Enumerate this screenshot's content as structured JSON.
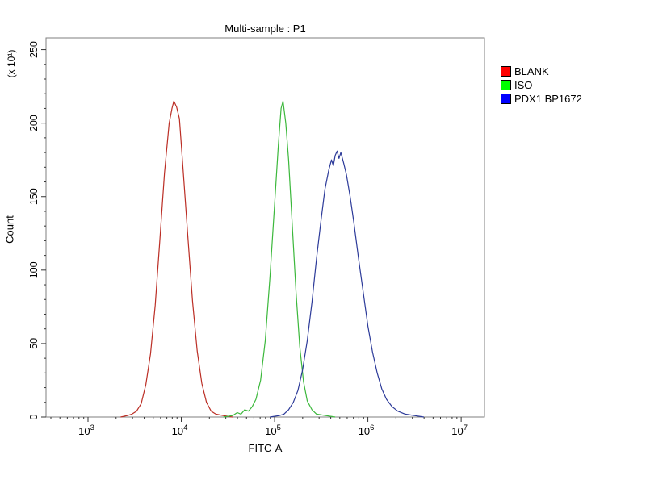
{
  "chart_data": {
    "type": "line",
    "title": "Multi-sample : P1",
    "xlabel": "FITC-A",
    "ylabel": "Count",
    "y_multiplier_label": "(x 10¹)",
    "x_scale": "log10",
    "x_range_log10": [
      2.55,
      7.25
    ],
    "x_major_tick_exponents": [
      3,
      4,
      5,
      6,
      7
    ],
    "y_range": [
      0,
      258
    ],
    "y_major_ticks": [
      0,
      50,
      100,
      150,
      200,
      250
    ],
    "y_minor_tick_step": 10,
    "grid": false,
    "legend_position": "right",
    "series": [
      {
        "name": "BLANK",
        "color": "#bb2e25",
        "legend_color": "#ff0000",
        "peak_x": 8500,
        "peak_log10": 3.92,
        "peak_count": 215,
        "points": [
          [
            3.35,
            0
          ],
          [
            3.42,
            1
          ],
          [
            3.47,
            2
          ],
          [
            3.52,
            4
          ],
          [
            3.57,
            9
          ],
          [
            3.62,
            22
          ],
          [
            3.67,
            43
          ],
          [
            3.72,
            76
          ],
          [
            3.77,
            120
          ],
          [
            3.82,
            166
          ],
          [
            3.87,
            200
          ],
          [
            3.9,
            210
          ],
          [
            3.92,
            215
          ],
          [
            3.95,
            211
          ],
          [
            3.98,
            203
          ],
          [
            4.02,
            168
          ],
          [
            4.07,
            123
          ],
          [
            4.12,
            79
          ],
          [
            4.17,
            45
          ],
          [
            4.22,
            23
          ],
          [
            4.27,
            10
          ],
          [
            4.32,
            4
          ],
          [
            4.37,
            2
          ],
          [
            4.45,
            1
          ],
          [
            4.55,
            0
          ]
        ]
      },
      {
        "name": "ISO",
        "color": "#3cb83c",
        "legend_color": "#00ff00",
        "peak_x": 120000,
        "peak_log10": 5.09,
        "peak_count": 215,
        "points": [
          [
            4.45,
            0
          ],
          [
            4.55,
            1
          ],
          [
            4.6,
            3
          ],
          [
            4.64,
            2
          ],
          [
            4.68,
            5
          ],
          [
            4.72,
            4
          ],
          [
            4.76,
            7
          ],
          [
            4.8,
            12
          ],
          [
            4.85,
            25
          ],
          [
            4.9,
            52
          ],
          [
            4.95,
            95
          ],
          [
            5.0,
            145
          ],
          [
            5.04,
            185
          ],
          [
            5.07,
            210
          ],
          [
            5.09,
            215
          ],
          [
            5.12,
            200
          ],
          [
            5.15,
            175
          ],
          [
            5.19,
            130
          ],
          [
            5.23,
            85
          ],
          [
            5.27,
            48
          ],
          [
            5.31,
            24
          ],
          [
            5.35,
            11
          ],
          [
            5.4,
            5
          ],
          [
            5.45,
            2
          ],
          [
            5.55,
            1
          ],
          [
            5.65,
            0
          ]
        ]
      },
      {
        "name": "PDX1 BP1672",
        "color": "#2c3a99",
        "legend_color": "#0000ff",
        "peak_x": 460000,
        "peak_log10": 5.67,
        "peak_count": 181,
        "points": [
          [
            4.95,
            0
          ],
          [
            5.05,
            1
          ],
          [
            5.1,
            2
          ],
          [
            5.15,
            5
          ],
          [
            5.2,
            10
          ],
          [
            5.25,
            18
          ],
          [
            5.3,
            32
          ],
          [
            5.35,
            52
          ],
          [
            5.4,
            78
          ],
          [
            5.45,
            108
          ],
          [
            5.5,
            135
          ],
          [
            5.54,
            155
          ],
          [
            5.58,
            168
          ],
          [
            5.61,
            175
          ],
          [
            5.63,
            171
          ],
          [
            5.65,
            178
          ],
          [
            5.67,
            181
          ],
          [
            5.69,
            176
          ],
          [
            5.71,
            180
          ],
          [
            5.74,
            173
          ],
          [
            5.77,
            165
          ],
          [
            5.81,
            150
          ],
          [
            5.85,
            132
          ],
          [
            5.9,
            108
          ],
          [
            5.95,
            85
          ],
          [
            6.0,
            62
          ],
          [
            6.05,
            44
          ],
          [
            6.1,
            30
          ],
          [
            6.15,
            19
          ],
          [
            6.2,
            12
          ],
          [
            6.26,
            7
          ],
          [
            6.32,
            4
          ],
          [
            6.4,
            2
          ],
          [
            6.5,
            1
          ],
          [
            6.6,
            0
          ]
        ]
      }
    ]
  }
}
